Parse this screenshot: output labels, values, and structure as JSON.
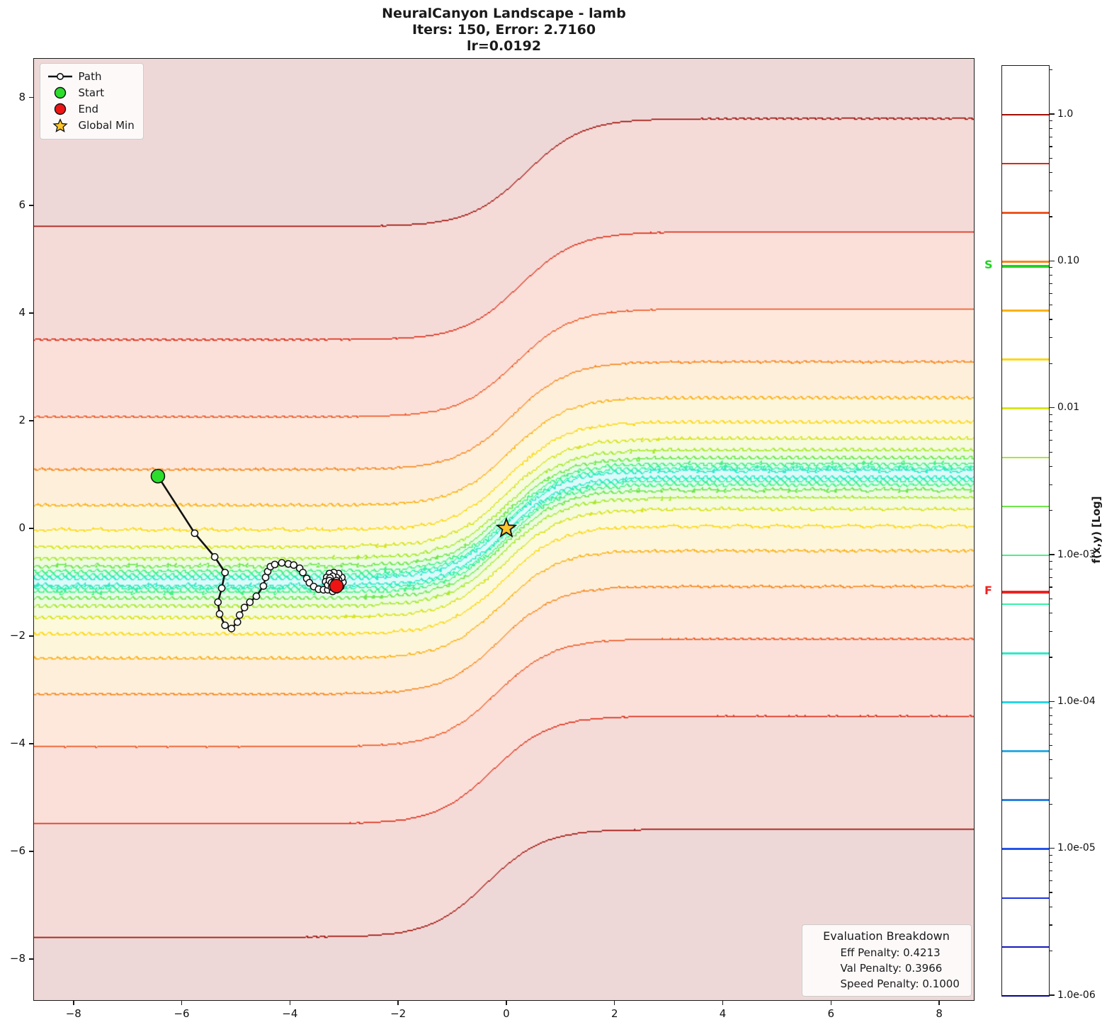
{
  "title": {
    "line1": "NeuralCanyon Landscape - lamb",
    "line2": "Iters: 150, Error: 2.7160",
    "line3": "lr=0.0192"
  },
  "legend": {
    "items": [
      {
        "label": "Path",
        "marker": "path-line"
      },
      {
        "label": "Start",
        "marker": "circle",
        "color": "#2cdd2c"
      },
      {
        "label": "End",
        "marker": "circle",
        "color": "#ee1414"
      },
      {
        "label": "Global Min",
        "marker": "star",
        "color": "#ffc52a"
      }
    ]
  },
  "eval_box": {
    "title": "Evaluation Breakdown",
    "lines": [
      "Eff Penalty: 0.4213",
      "Val Penalty: 0.3966",
      "Speed Penalty: 0.1000"
    ]
  },
  "colorbar": {
    "label": "f(x,y) [Log]",
    "vmin": 1e-06,
    "vmax": 2.154,
    "major_ticks": [
      {
        "v": 1.0,
        "label": "1.0"
      },
      {
        "v": 0.1,
        "label": "0.10"
      },
      {
        "v": 0.01,
        "label": "0.01"
      },
      {
        "v": 0.001,
        "label": "1.0e-03"
      },
      {
        "v": 0.0001,
        "label": "1.0e-04"
      },
      {
        "v": 1e-05,
        "label": "1.0e-05"
      },
      {
        "v": 1e-06,
        "label": "1.0e-06"
      }
    ],
    "start_marker": {
      "letter": "S",
      "value": 0.0925,
      "color": "#1fd41f"
    },
    "final_marker": {
      "letter": "F",
      "value": 0.00056,
      "color": "#ee2222"
    }
  },
  "chart_data": {
    "type": "contour",
    "title": "NeuralCanyon Landscape - lamb",
    "subtitle": "Iters: 150, Error: 2.7160, lr=0.0192",
    "xlabel": "",
    "ylabel": "",
    "xlim": [
      -8.73,
      8.64
    ],
    "ylim": [
      -8.76,
      8.72
    ],
    "xticks": [
      {
        "v": -8,
        "label": "−8"
      },
      {
        "v": -6,
        "label": "−6"
      },
      {
        "v": -4,
        "label": "−4"
      },
      {
        "v": -2,
        "label": "−2"
      },
      {
        "v": 0,
        "label": "0"
      },
      {
        "v": 2,
        "label": "2"
      },
      {
        "v": 4,
        "label": "4"
      },
      {
        "v": 6,
        "label": "6"
      },
      {
        "v": 8,
        "label": "8"
      }
    ],
    "yticks": [
      {
        "v": -8,
        "label": "−8"
      },
      {
        "v": -6,
        "label": "−6"
      },
      {
        "v": -4,
        "label": "−4"
      },
      {
        "v": -2,
        "label": "−2"
      },
      {
        "v": 0,
        "label": "0"
      },
      {
        "v": 2,
        "label": "2"
      },
      {
        "v": 4,
        "label": "4"
      },
      {
        "v": 6,
        "label": "6"
      },
      {
        "v": 8,
        "label": "8"
      }
    ],
    "surface": {
      "formula": "f(x,y) = ((y - tanh(x - 0.055*y) + ripple)/6.6)^2 + 1.2e-4, log10 color scale",
      "scale": 6.6,
      "shear": 0.055,
      "floor": 0.00012,
      "ripple1": {
        "amp": 0.034,
        "kx": 43,
        "ky": 43
      },
      "ripple2": {
        "amp": 0.013,
        "kx": 9.5,
        "ky": 8.3,
        "phase": 1.0
      },
      "taper": 0.3
    },
    "levels": [
      {
        "v": 1.0,
        "c": "#a00c05"
      },
      {
        "v": 0.4642,
        "c": "#dd2a12"
      },
      {
        "v": 0.2154,
        "c": "#ee5621"
      },
      {
        "v": 0.1,
        "c": "#f8861b"
      },
      {
        "v": 0.04642,
        "c": "#fbb116"
      },
      {
        "v": 0.02154,
        "c": "#fcd917"
      },
      {
        "v": 0.01,
        "c": "#d9e41f"
      },
      {
        "v": 0.004642,
        "c": "#a8e92c"
      },
      {
        "v": 0.002154,
        "c": "#70e74d"
      },
      {
        "v": 0.001,
        "c": "#48f185"
      },
      {
        "v": 0.0004642,
        "c": "#3af0a9"
      },
      {
        "v": 0.0002154,
        "c": "#31eac9"
      },
      {
        "v": 0.0001,
        "c": "#29d5e8"
      },
      {
        "v": 4.642e-05,
        "c": "#2fabe4"
      },
      {
        "v": 2.154e-05,
        "c": "#2e80dd"
      },
      {
        "v": 1e-05,
        "c": "#2554ea"
      },
      {
        "v": 4.642e-06,
        "c": "#1e33e2"
      },
      {
        "v": 2.154e-06,
        "c": "#1519bb"
      },
      {
        "v": 1e-06,
        "c": "#04048a"
      }
    ],
    "path": [
      [
        -6.44,
        0.97
      ],
      [
        -5.76,
        -0.09
      ],
      [
        -5.39,
        -0.53
      ],
      [
        -5.2,
        -0.82
      ],
      [
        -5.26,
        -1.11
      ],
      [
        -5.33,
        -1.37
      ],
      [
        -5.3,
        -1.59
      ],
      [
        -5.2,
        -1.8
      ],
      [
        -5.08,
        -1.86
      ],
      [
        -4.97,
        -1.74
      ],
      [
        -4.93,
        -1.61
      ],
      [
        -4.84,
        -1.47
      ],
      [
        -4.74,
        -1.37
      ],
      [
        -4.62,
        -1.26
      ],
      [
        -4.49,
        -1.07
      ],
      [
        -4.45,
        -0.91
      ],
      [
        -4.41,
        -0.8
      ],
      [
        -4.36,
        -0.71
      ],
      [
        -4.28,
        -0.67
      ],
      [
        -4.15,
        -0.64
      ],
      [
        -4.03,
        -0.66
      ],
      [
        -3.93,
        -0.68
      ],
      [
        -3.82,
        -0.74
      ],
      [
        -3.76,
        -0.82
      ],
      [
        -3.69,
        -0.93
      ],
      [
        -3.64,
        -1.01
      ],
      [
        -3.56,
        -1.08
      ],
      [
        -3.47,
        -1.13
      ],
      [
        -3.38,
        -1.14
      ],
      [
        -3.3,
        -1.14
      ],
      [
        -3.21,
        -1.17
      ],
      [
        -3.13,
        -1.14
      ],
      [
        -3.06,
        -1.08
      ],
      [
        -3.02,
        -1.0
      ],
      [
        -3.04,
        -0.91
      ],
      [
        -3.1,
        -0.84
      ],
      [
        -3.19,
        -0.82
      ],
      [
        -3.27,
        -0.84
      ],
      [
        -3.32,
        -0.91
      ],
      [
        -3.34,
        -0.99
      ],
      [
        -3.3,
        -1.05
      ],
      [
        -3.23,
        -1.09
      ],
      [
        -3.17,
        -1.08
      ],
      [
        -3.11,
        -1.03
      ],
      [
        -3.1,
        -0.96
      ],
      [
        -3.14,
        -0.91
      ],
      [
        -3.21,
        -0.89
      ],
      [
        -3.26,
        -0.92
      ],
      [
        -3.27,
        -0.97
      ],
      [
        -3.23,
        -1.01
      ],
      [
        -3.18,
        -1.01
      ],
      [
        -3.14,
        -0.97
      ],
      [
        -3.14,
        -1.07
      ]
    ],
    "start_point": [
      -6.44,
      0.97
    ],
    "end_point": [
      -3.14,
      -1.07
    ],
    "global_min": [
      0,
      0
    ],
    "path_style": {
      "line_color": "#111111",
      "marker_fill": "#ffffff",
      "start_color": "#2cdd2c",
      "end_color": "#ee1414",
      "star_color": "#ffc52a"
    }
  }
}
